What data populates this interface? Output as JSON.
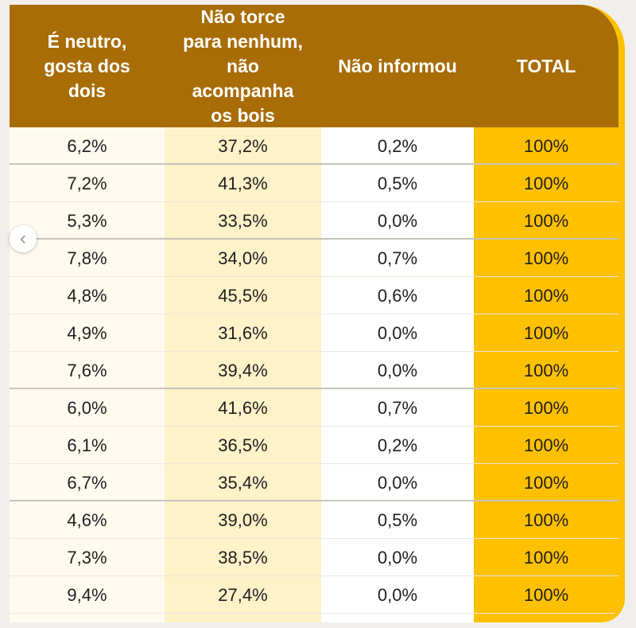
{
  "table": {
    "headers": [
      "É neutro,\ngosta dos\ndois",
      "Não torce\npara nenhum,\nnão\nacompanha\nos bois",
      "Não informou",
      "TOTAL"
    ],
    "rows": [
      [
        "6,2%",
        "37,2%",
        "0,2%",
        "100%"
      ],
      [
        "7,2%",
        "41,3%",
        "0,5%",
        "100%"
      ],
      [
        "5,3%",
        "33,5%",
        "0,0%",
        "100%"
      ],
      [
        "7,8%",
        "34,0%",
        "0,7%",
        "100%"
      ],
      [
        "4,8%",
        "45,5%",
        "0,6%",
        "100%"
      ],
      [
        "4,9%",
        "31,6%",
        "0,0%",
        "100%"
      ],
      [
        "7,6%",
        "39,4%",
        "0,0%",
        "100%"
      ],
      [
        "6,0%",
        "41,6%",
        "0,7%",
        "100%"
      ],
      [
        "6,1%",
        "36,5%",
        "0,2%",
        "100%"
      ],
      [
        "6,7%",
        "35,4%",
        "0,0%",
        "100%"
      ],
      [
        "4,6%",
        "39,0%",
        "0,5%",
        "100%"
      ],
      [
        "7,3%",
        "38,5%",
        "0,0%",
        "100%"
      ],
      [
        "9,4%",
        "27,4%",
        "0,0%",
        "100%"
      ]
    ]
  },
  "icons": {
    "nav_left": "chevron-left-icon"
  },
  "colors": {
    "header_bg": "#a86d07",
    "total_col": "#ffc000",
    "highlight_col": "#fff1c8"
  }
}
